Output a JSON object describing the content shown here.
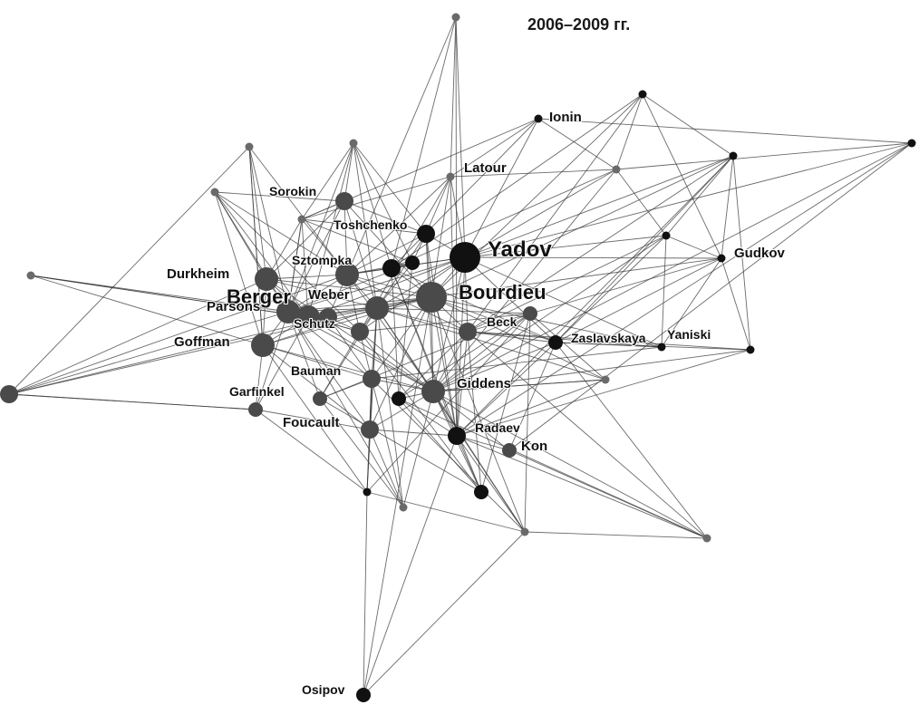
{
  "title": "2006–2009 гг.",
  "nodes": [
    {
      "id": "n0",
      "label": "Yadov",
      "size": "xl",
      "tone": "black"
    },
    {
      "id": "n1",
      "label": "Bourdieu",
      "size": "xl",
      "tone": "dark"
    },
    {
      "id": "n2",
      "label": "Berger",
      "size": "l",
      "tone": "dark"
    },
    {
      "id": "n3",
      "label": "Durkheim",
      "size": "l",
      "tone": "dark"
    },
    {
      "id": "n4",
      "label": "Parsons",
      "size": "l",
      "tone": "dark"
    },
    {
      "id": "n5",
      "label": "Goffman",
      "size": "l",
      "tone": "dark"
    },
    {
      "id": "n6",
      "label": "Sorokin",
      "size": "m",
      "tone": "dark"
    },
    {
      "id": "n7",
      "label": "Toshchenko",
      "size": "m",
      "tone": "black"
    },
    {
      "id": "n8",
      "label": "Sztompka",
      "size": "l",
      "tone": "dark"
    },
    {
      "id": "n9",
      "label": "Weber",
      "size": "l",
      "tone": "dark"
    },
    {
      "id": "n10",
      "label": "Schutz",
      "size": "m",
      "tone": "dark"
    },
    {
      "id": "n11",
      "label": "Beck",
      "size": "m",
      "tone": "dark"
    },
    {
      "id": "n12",
      "label": "Bauman",
      "size": "m",
      "tone": "dark"
    },
    {
      "id": "n13",
      "label": "Giddens",
      "size": "l",
      "tone": "dark"
    },
    {
      "id": "n14",
      "label": "Garfinkel",
      "size": "s",
      "tone": "dark"
    },
    {
      "id": "n15",
      "label": "Foucault",
      "size": "m",
      "tone": "dark"
    },
    {
      "id": "n16",
      "label": "Radaev",
      "size": "m",
      "tone": "black"
    },
    {
      "id": "n17",
      "label": "Kon",
      "size": "s",
      "tone": "dark"
    },
    {
      "id": "n18",
      "label": "Zaslavskaya",
      "size": "s",
      "tone": "black"
    },
    {
      "id": "n19",
      "label": "Yaniski",
      "size": "xs",
      "tone": "black"
    },
    {
      "id": "n20",
      "label": "Gudkov",
      "size": "xs",
      "tone": "black"
    },
    {
      "id": "n21",
      "label": "Latour",
      "size": "xs",
      "tone": "gray"
    },
    {
      "id": "n22",
      "label": "Ionin",
      "size": "xs",
      "tone": "black"
    },
    {
      "id": "n23",
      "label": "Osipov",
      "size": "s",
      "tone": "black"
    },
    {
      "id": "n24",
      "label": "",
      "size": "xs",
      "tone": "gray"
    },
    {
      "id": "n25",
      "label": "",
      "size": "xs",
      "tone": "black"
    },
    {
      "id": "n26",
      "label": "",
      "size": "xs",
      "tone": "black"
    },
    {
      "id": "n27",
      "label": "",
      "size": "xs",
      "tone": "gray"
    },
    {
      "id": "n28",
      "label": "",
      "size": "xs",
      "tone": "gray"
    },
    {
      "id": "n29",
      "label": "",
      "size": "xs",
      "tone": "gray"
    },
    {
      "id": "n30",
      "label": "",
      "size": "xs",
      "tone": "gray"
    },
    {
      "id": "n31",
      "label": "",
      "size": "xs",
      "tone": "gray"
    },
    {
      "id": "n32",
      "label": "",
      "size": "xs",
      "tone": "black"
    },
    {
      "id": "n33",
      "label": "",
      "size": "xs",
      "tone": "gray"
    },
    {
      "id": "n34",
      "label": "",
      "size": "xs",
      "tone": "gray"
    },
    {
      "id": "n35",
      "label": "",
      "size": "xs",
      "tone": "black"
    },
    {
      "id": "n36",
      "label": "",
      "size": "xs",
      "tone": "black"
    },
    {
      "id": "n37",
      "label": "",
      "size": "xs",
      "tone": "gray"
    },
    {
      "id": "n38",
      "label": "",
      "size": "xs",
      "tone": "gray"
    },
    {
      "id": "n39",
      "label": "",
      "size": "xs",
      "tone": "gray"
    },
    {
      "id": "n40",
      "label": "",
      "size": "xs",
      "tone": "black"
    },
    {
      "id": "n41",
      "label": "",
      "size": "m",
      "tone": "black"
    },
    {
      "id": "n42",
      "label": "",
      "size": "m",
      "tone": "dark"
    },
    {
      "id": "n43",
      "label": "",
      "size": "m",
      "tone": "dark"
    },
    {
      "id": "n44",
      "label": "",
      "size": "s",
      "tone": "black"
    },
    {
      "id": "n45",
      "label": "",
      "size": "s",
      "tone": "dark"
    },
    {
      "id": "n46",
      "label": "",
      "size": "s",
      "tone": "dark"
    },
    {
      "id": "n47",
      "label": "",
      "size": "s",
      "tone": "black"
    },
    {
      "id": "n48",
      "label": "",
      "size": "s",
      "tone": "black"
    }
  ],
  "edges": [
    [
      "n0",
      "n1"
    ],
    [
      "n0",
      "n2"
    ],
    [
      "n0",
      "n7"
    ],
    [
      "n0",
      "n8"
    ],
    [
      "n0",
      "n9"
    ],
    [
      "n0",
      "n11"
    ],
    [
      "n0",
      "n13"
    ],
    [
      "n0",
      "n16"
    ],
    [
      "n0",
      "n18"
    ],
    [
      "n0",
      "n20"
    ],
    [
      "n0",
      "n21"
    ],
    [
      "n0",
      "n22"
    ],
    [
      "n0",
      "n24"
    ],
    [
      "n0",
      "n27"
    ],
    [
      "n0",
      "n32"
    ],
    [
      "n0",
      "n36"
    ],
    [
      "n0",
      "n41"
    ],
    [
      "n0",
      "n10"
    ],
    [
      "n0",
      "n4"
    ],
    [
      "n1",
      "n2"
    ],
    [
      "n1",
      "n3"
    ],
    [
      "n1",
      "n4"
    ],
    [
      "n1",
      "n5"
    ],
    [
      "n1",
      "n7"
    ],
    [
      "n1",
      "n8"
    ],
    [
      "n1",
      "n9"
    ],
    [
      "n1",
      "n11"
    ],
    [
      "n1",
      "n12"
    ],
    [
      "n1",
      "n13"
    ],
    [
      "n1",
      "n15"
    ],
    [
      "n1",
      "n16"
    ],
    [
      "n1",
      "n18"
    ],
    [
      "n1",
      "n19"
    ],
    [
      "n1",
      "n20"
    ],
    [
      "n1",
      "n21"
    ],
    [
      "n1",
      "n25"
    ],
    [
      "n1",
      "n26"
    ],
    [
      "n1",
      "n33"
    ],
    [
      "n1",
      "n38"
    ],
    [
      "n1",
      "n41"
    ],
    [
      "n1",
      "n42"
    ],
    [
      "n2",
      "n3"
    ],
    [
      "n2",
      "n4"
    ],
    [
      "n2",
      "n5"
    ],
    [
      "n2",
      "n6"
    ],
    [
      "n2",
      "n8"
    ],
    [
      "n2",
      "n9"
    ],
    [
      "n2",
      "n10"
    ],
    [
      "n2",
      "n12"
    ],
    [
      "n2",
      "n13"
    ],
    [
      "n2",
      "n14"
    ],
    [
      "n2",
      "n15"
    ],
    [
      "n2",
      "n28"
    ],
    [
      "n2",
      "n29"
    ],
    [
      "n2",
      "n30"
    ],
    [
      "n2",
      "n31"
    ],
    [
      "n2",
      "n37"
    ],
    [
      "n2",
      "n42"
    ],
    [
      "n2",
      "n43"
    ],
    [
      "n3",
      "n4"
    ],
    [
      "n3",
      "n5"
    ],
    [
      "n3",
      "n6"
    ],
    [
      "n3",
      "n8"
    ],
    [
      "n3",
      "n9"
    ],
    [
      "n3",
      "n13"
    ],
    [
      "n3",
      "n29"
    ],
    [
      "n3",
      "n30"
    ],
    [
      "n3",
      "n31"
    ],
    [
      "n3",
      "n42"
    ],
    [
      "n4",
      "n5"
    ],
    [
      "n4",
      "n9"
    ],
    [
      "n4",
      "n10"
    ],
    [
      "n4",
      "n13"
    ],
    [
      "n4",
      "n14"
    ],
    [
      "n4",
      "n28"
    ],
    [
      "n4",
      "n29"
    ],
    [
      "n4",
      "n34"
    ],
    [
      "n4",
      "n43"
    ],
    [
      "n5",
      "n12"
    ],
    [
      "n5",
      "n13"
    ],
    [
      "n5",
      "n14"
    ],
    [
      "n5",
      "n15"
    ],
    [
      "n5",
      "n35"
    ],
    [
      "n5",
      "n9"
    ],
    [
      "n5",
      "n30"
    ],
    [
      "n6",
      "n7"
    ],
    [
      "n6",
      "n8"
    ],
    [
      "n6",
      "n9"
    ],
    [
      "n6",
      "n28"
    ],
    [
      "n6",
      "n29"
    ],
    [
      "n6",
      "n31"
    ],
    [
      "n6",
      "n1"
    ],
    [
      "n7",
      "n8"
    ],
    [
      "n7",
      "n9"
    ],
    [
      "n7",
      "n21"
    ],
    [
      "n7",
      "n28"
    ],
    [
      "n7",
      "n13"
    ],
    [
      "n7",
      "n16"
    ],
    [
      "n7",
      "n44"
    ],
    [
      "n8",
      "n9"
    ],
    [
      "n8",
      "n10"
    ],
    [
      "n8",
      "n11"
    ],
    [
      "n8",
      "n13"
    ],
    [
      "n8",
      "n29"
    ],
    [
      "n8",
      "n31"
    ],
    [
      "n8",
      "n44"
    ],
    [
      "n8",
      "n43"
    ],
    [
      "n9",
      "n10"
    ],
    [
      "n9",
      "n11"
    ],
    [
      "n9",
      "n12"
    ],
    [
      "n9",
      "n13"
    ],
    [
      "n9",
      "n15"
    ],
    [
      "n9",
      "n28"
    ],
    [
      "n9",
      "n46"
    ],
    [
      "n9",
      "n45"
    ],
    [
      "n10",
      "n12"
    ],
    [
      "n10",
      "n13"
    ],
    [
      "n10",
      "n45"
    ],
    [
      "n10",
      "n46"
    ],
    [
      "n10",
      "n48"
    ],
    [
      "n11",
      "n13"
    ],
    [
      "n11",
      "n16"
    ],
    [
      "n11",
      "n18"
    ],
    [
      "n11",
      "n19"
    ],
    [
      "n11",
      "n47"
    ],
    [
      "n11",
      "n48"
    ],
    [
      "n12",
      "n13"
    ],
    [
      "n12",
      "n15"
    ],
    [
      "n12",
      "n35"
    ],
    [
      "n12",
      "n38"
    ],
    [
      "n12",
      "n37"
    ],
    [
      "n13",
      "n15"
    ],
    [
      "n13",
      "n16"
    ],
    [
      "n13",
      "n17"
    ],
    [
      "n13",
      "n18"
    ],
    [
      "n13",
      "n33"
    ],
    [
      "n13",
      "n38"
    ],
    [
      "n13",
      "n39"
    ],
    [
      "n13",
      "n45"
    ],
    [
      "n14",
      "n15"
    ],
    [
      "n14",
      "n35"
    ],
    [
      "n14",
      "n42"
    ],
    [
      "n15",
      "n16"
    ],
    [
      "n15",
      "n35"
    ],
    [
      "n15",
      "n37"
    ],
    [
      "n15",
      "n12"
    ],
    [
      "n16",
      "n17"
    ],
    [
      "n16",
      "n18"
    ],
    [
      "n16",
      "n23"
    ],
    [
      "n16",
      "n38"
    ],
    [
      "n16",
      "n39"
    ],
    [
      "n16",
      "n40"
    ],
    [
      "n16",
      "n33"
    ],
    [
      "n16",
      "n41"
    ],
    [
      "n16",
      "n47"
    ],
    [
      "n17",
      "n18"
    ],
    [
      "n17",
      "n39"
    ],
    [
      "n17",
      "n36"
    ],
    [
      "n18",
      "n19"
    ],
    [
      "n18",
      "n20"
    ],
    [
      "n18",
      "n26"
    ],
    [
      "n18",
      "n32"
    ],
    [
      "n18",
      "n41"
    ],
    [
      "n19",
      "n20"
    ],
    [
      "n19",
      "n32"
    ],
    [
      "n19",
      "n0"
    ],
    [
      "n19",
      "n12"
    ],
    [
      "n20",
      "n25"
    ],
    [
      "n20",
      "n26"
    ],
    [
      "n20",
      "n32"
    ],
    [
      "n20",
      "n40"
    ],
    [
      "n20",
      "n11"
    ],
    [
      "n21",
      "n22"
    ],
    [
      "n21",
      "n24"
    ],
    [
      "n21",
      "n27"
    ],
    [
      "n21",
      "n8"
    ],
    [
      "n21",
      "n10"
    ],
    [
      "n21",
      "n16"
    ],
    [
      "n21",
      "n29"
    ],
    [
      "n22",
      "n27"
    ],
    [
      "n22",
      "n29"
    ],
    [
      "n22",
      "n41"
    ],
    [
      "n22",
      "n36"
    ],
    [
      "n23",
      "n38"
    ],
    [
      "n23",
      "n35"
    ],
    [
      "n23",
      "n1"
    ],
    [
      "n24",
      "n8"
    ],
    [
      "n24",
      "n41"
    ],
    [
      "n24",
      "n16"
    ],
    [
      "n25",
      "n26"
    ],
    [
      "n25",
      "n27"
    ],
    [
      "n25",
      "n11"
    ],
    [
      "n25",
      "n41"
    ],
    [
      "n26",
      "n32"
    ],
    [
      "n26",
      "n40"
    ],
    [
      "n26",
      "n16"
    ],
    [
      "n26",
      "n0"
    ],
    [
      "n26",
      "n11"
    ],
    [
      "n27",
      "n41"
    ],
    [
      "n27",
      "n36"
    ],
    [
      "n27",
      "n13"
    ],
    [
      "n27",
      "n32"
    ],
    [
      "n28",
      "n29"
    ],
    [
      "n28",
      "n44"
    ],
    [
      "n28",
      "n41"
    ],
    [
      "n29",
      "n44"
    ],
    [
      "n29",
      "n7"
    ],
    [
      "n29",
      "n2"
    ],
    [
      "n30",
      "n42"
    ],
    [
      "n30",
      "n5"
    ],
    [
      "n30",
      "n8"
    ],
    [
      "n31",
      "n4"
    ],
    [
      "n31",
      "n5"
    ],
    [
      "n31",
      "n10"
    ],
    [
      "n32",
      "n11"
    ],
    [
      "n32",
      "n13"
    ],
    [
      "n33",
      "n13"
    ],
    [
      "n33",
      "n9"
    ],
    [
      "n33",
      "n45"
    ],
    [
      "n34",
      "n4"
    ],
    [
      "n34",
      "n5"
    ],
    [
      "n34",
      "n2"
    ],
    [
      "n35",
      "n38"
    ],
    [
      "n35",
      "n45"
    ],
    [
      "n35",
      "n9"
    ],
    [
      "n36",
      "n16"
    ],
    [
      "n36",
      "n13"
    ],
    [
      "n37",
      "n13"
    ],
    [
      "n37",
      "n9"
    ],
    [
      "n37",
      "n46"
    ],
    [
      "n38",
      "n39"
    ],
    [
      "n38",
      "n45"
    ],
    [
      "n38",
      "n9"
    ],
    [
      "n39",
      "n18"
    ],
    [
      "n39",
      "n11"
    ],
    [
      "n39",
      "n47"
    ],
    [
      "n40",
      "n18"
    ],
    [
      "n40",
      "n13"
    ],
    [
      "n40",
      "n11"
    ],
    [
      "n41",
      "n44"
    ],
    [
      "n41",
      "n8"
    ],
    [
      "n41",
      "n47"
    ],
    [
      "n41",
      "n48"
    ],
    [
      "n42",
      "n43"
    ],
    [
      "n42",
      "n8"
    ],
    [
      "n42",
      "n14"
    ],
    [
      "n43",
      "n9"
    ],
    [
      "n43",
      "n10"
    ],
    [
      "n43",
      "n12"
    ],
    [
      "n44",
      "n47"
    ],
    [
      "n44",
      "n9"
    ],
    [
      "n44",
      "n2"
    ],
    [
      "n45",
      "n46"
    ],
    [
      "n45",
      "n47"
    ],
    [
      "n45",
      "n48"
    ],
    [
      "n46",
      "n12"
    ],
    [
      "n46",
      "n48"
    ],
    [
      "n46",
      "n2"
    ],
    [
      "n47",
      "n48"
    ],
    [
      "n47",
      "n13"
    ],
    [
      "n48",
      "n13"
    ],
    [
      "n48",
      "n16"
    ]
  ]
}
